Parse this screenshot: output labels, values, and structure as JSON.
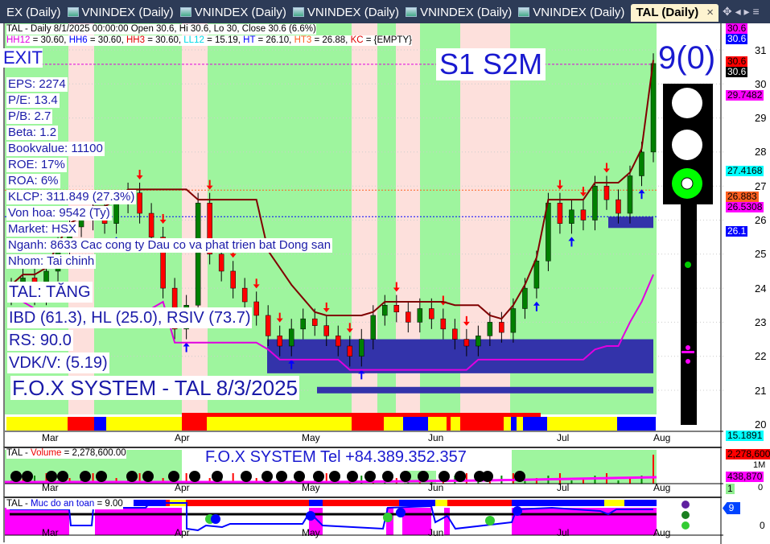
{
  "tabs": [
    {
      "label": "EX (Daily)"
    },
    {
      "label": "VNINDEX (Daily)"
    },
    {
      "label": "VNINDEX (Daily)"
    },
    {
      "label": "VNINDEX (Daily)"
    },
    {
      "label": "VNINDEX (Daily)"
    },
    {
      "label": "VNINDEX (Daily)"
    },
    {
      "label": "TAL (Daily)",
      "active": true
    }
  ],
  "tab_close": "×",
  "header": {
    "line1": "TAL - Daily 8/1/2025 00:00:00 Open 30.6, Hi 30.6, Lo 30, Close 30.6 (6.6%)",
    "line2": [
      {
        "k": "HH12",
        "c": "#e000e0",
        "v": " = 30.60, "
      },
      {
        "k": "HH6",
        "c": "#0000ff",
        "v": " = 30.60, "
      },
      {
        "k": "HH3",
        "c": "#e00000",
        "v": " = 30.60, "
      },
      {
        "k": "LL12",
        "c": "#00d8e8",
        "v": " = 15.19, "
      },
      {
        "k": "HT",
        "c": "#0000ff",
        "v": "  = 26.10, "
      },
      {
        "k": "HT3",
        "c": "#ff6020",
        "v": "  = 26.88, "
      },
      {
        "k": "KC",
        "c": "#e00000",
        "v": " = {EMPTY}"
      }
    ]
  },
  "exit_label": "EXIT",
  "signal_label": "S1  S2M",
  "score_label": "9(0)",
  "fundamentals": [
    "EPS: 2274",
    "P/E: 13.4",
    "P/B: 2.7",
    "Beta: 1.2",
    "Bookvalue: 11100",
    "ROE: 17%",
    "ROA: 6%",
    "KLCP: 311.849 (27.3%)",
    "Von hoa: 9542 (Ty)",
    "Market: HSX",
    "Nganh: 8633 Cac cong ty Dau co va phat trien bat Dong san",
    "Nhom: Tai chinh"
  ],
  "status": "TAL: TĂNG",
  "ratings": "IBD (61.3), HL (25.0), RSIV (73.7)",
  "rs": "RS: 90.0",
  "vdk": "VDK/V:  (5.19)",
  "footer_title": "F.O.X SYSTEM - TAL 8/3/2025",
  "price_axis": {
    "ticks": [
      "31",
      "30",
      "29",
      "28",
      "27",
      "26",
      "25",
      "24",
      "23",
      "22",
      "21",
      "20"
    ],
    "tags": [
      {
        "v": "30.6",
        "bg": "#ff00ff",
        "fg": "#000"
      },
      {
        "v": "30.6",
        "bg": "#0000ff",
        "fg": "#fff"
      },
      {
        "v": "30.6",
        "bg": "#ff0000",
        "fg": "#000"
      },
      {
        "v": "30.6",
        "bg": "#000",
        "fg": "#fff"
      },
      {
        "v": "29.7482",
        "bg": "#ff00ff",
        "fg": "#000"
      },
      {
        "v": "27.4168",
        "bg": "#00ffff",
        "fg": "#000"
      },
      {
        "v": "26.883",
        "bg": "#ff6020",
        "fg": "#000"
      },
      {
        "v": "26.5308",
        "bg": "#ff00ff",
        "fg": "#000"
      },
      {
        "v": "26.1",
        "bg": "#0000ff",
        "fg": "#fff"
      },
      {
        "v": "15.1891",
        "bg": "#00ffff",
        "fg": "#000"
      }
    ]
  },
  "closes": [
    24.0,
    24.3,
    23.8,
    24.5,
    25.2,
    25.8,
    26.0,
    26.3,
    25.9,
    26.5,
    26.8,
    26.2,
    25.5,
    24.0,
    22.8,
    23.5,
    26.5,
    25.0,
    24.5,
    24.0,
    23.6,
    23.2,
    22.6,
    22.3,
    22.8,
    23.1,
    22.9,
    22.6,
    22.3,
    22.0,
    22.5,
    23.2,
    23.5,
    23.3,
    23.0,
    23.4,
    23.1,
    22.8,
    22.5,
    22.3,
    22.6,
    23.0,
    22.7,
    23.4,
    24.0,
    24.8,
    26.5,
    25.9,
    26.3,
    26.0,
    27.0,
    26.6,
    26.2,
    27.3,
    28.0,
    30.6
  ],
  "months": [
    "Mar",
    "Apr",
    "May",
    "Jun",
    "Jul",
    "Aug"
  ],
  "volume": {
    "title_prefix": "TAL - ",
    "title_key": "Volume",
    "title_value": " = 2,278,600.00",
    "banner": "F.O.X SYSTEM Tel +84.389.352.357",
    "tags": [
      {
        "v": "2,278,600",
        "bg": "#ff0000",
        "fg": "#000"
      },
      {
        "v": "438,870",
        "bg": "#ff00ff",
        "fg": "#000"
      },
      {
        "v": "1",
        "bg": "#90ee90",
        "fg": "#000"
      }
    ],
    "ticks": [
      "1M",
      "0"
    ]
  },
  "safety": {
    "title_prefix": "TAL - ",
    "title_key": "Muc do an toan",
    "title_value": " = 9.00",
    "tag": "9",
    "tick": "0"
  },
  "colors": {
    "accent": "#1a1ad0",
    "green_band": "#9ef59e",
    "pink_band": "#fde0dc",
    "box": "#3333aa"
  }
}
